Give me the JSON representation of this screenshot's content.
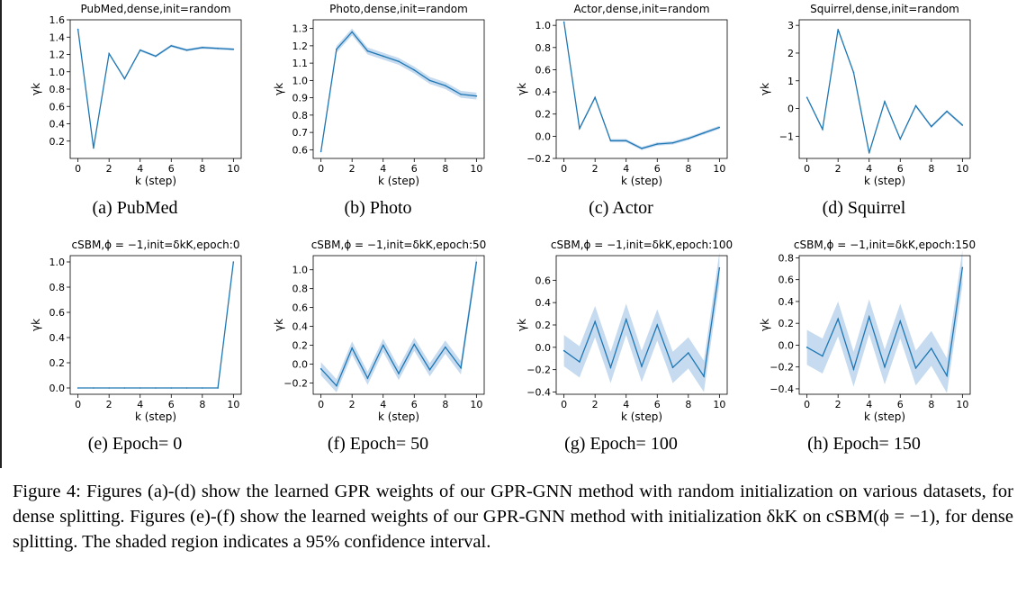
{
  "chart_data": [
    {
      "type": "line",
      "title": "PubMed,dense,init=random",
      "xlabel": "k (step)",
      "ylabel": "γk",
      "ylim": [
        0.0,
        1.6
      ],
      "yticks": [
        0.2,
        0.4,
        0.6,
        0.8,
        1.0,
        1.2,
        1.4,
        1.6
      ],
      "ytick_labels": [
        "0.2",
        "0.4",
        "0.6",
        "0.8",
        "1.0",
        "1.2",
        "1.4",
        "1.6"
      ],
      "xticks": [
        0,
        2,
        4,
        6,
        8,
        10
      ],
      "x": [
        0,
        1,
        2,
        3,
        4,
        5,
        6,
        7,
        8,
        9,
        10
      ],
      "series": [
        {
          "values": [
            1.49,
            0.12,
            1.21,
            0.92,
            1.25,
            1.18,
            1.3,
            1.25,
            1.28,
            1.27,
            1.26
          ],
          "ci": 0.015
        }
      ],
      "caption": "(a)  PubMed"
    },
    {
      "type": "line",
      "title": "Photo,dense,init=random",
      "xlabel": "k (step)",
      "ylabel": "γk",
      "ylim": [
        0.55,
        1.35
      ],
      "yticks": [
        0.6,
        0.7,
        0.8,
        0.9,
        1.0,
        1.1,
        1.2,
        1.3
      ],
      "ytick_labels": [
        "0.6",
        "0.7",
        "0.8",
        "0.9",
        "1.0",
        "1.1",
        "1.2",
        "1.3"
      ],
      "xticks": [
        0,
        2,
        4,
        6,
        8,
        10
      ],
      "x": [
        0,
        1,
        2,
        3,
        4,
        5,
        6,
        7,
        8,
        9,
        10
      ],
      "series": [
        {
          "values": [
            0.59,
            1.18,
            1.28,
            1.17,
            1.14,
            1.11,
            1.06,
            1.0,
            0.97,
            0.92,
            0.91
          ],
          "ci": 0.02
        }
      ],
      "caption": "(b)  Photo"
    },
    {
      "type": "line",
      "title": "Actor,dense,init=random",
      "xlabel": "k (step)",
      "ylabel": "γk",
      "ylim": [
        -0.2,
        1.05
      ],
      "yticks": [
        -0.2,
        0.0,
        0.2,
        0.4,
        0.6,
        0.8,
        1.0
      ],
      "ytick_labels": [
        "−0.2",
        "0.0",
        "0.2",
        "0.4",
        "0.6",
        "0.8",
        "1.0"
      ],
      "xticks": [
        0,
        2,
        4,
        6,
        8,
        10
      ],
      "x": [
        0,
        1,
        2,
        3,
        4,
        5,
        6,
        7,
        8,
        9,
        10
      ],
      "series": [
        {
          "values": [
            1.03,
            0.07,
            0.35,
            -0.04,
            -0.04,
            -0.11,
            -0.07,
            -0.06,
            -0.02,
            0.03,
            0.08
          ],
          "ci": 0.015
        }
      ],
      "caption": "(c)  Actor"
    },
    {
      "type": "line",
      "title": "Squirrel,dense,init=random",
      "xlabel": "k (step)",
      "ylabel": "γk",
      "ylim": [
        -1.8,
        3.2
      ],
      "yticks": [
        -1,
        0,
        1,
        2,
        3
      ],
      "ytick_labels": [
        "−1",
        "0",
        "1",
        "2",
        "3"
      ],
      "xticks": [
        0,
        2,
        4,
        6,
        8,
        10
      ],
      "x": [
        0,
        1,
        2,
        3,
        4,
        5,
        6,
        7,
        8,
        9,
        10
      ],
      "series": [
        {
          "values": [
            0.4,
            -0.75,
            2.85,
            1.3,
            -1.6,
            0.25,
            -1.1,
            0.1,
            -0.65,
            -0.1,
            -0.6
          ],
          "ci": 0.05
        }
      ],
      "caption": "(d)  Squirrel"
    },
    {
      "type": "line",
      "title": "cSBM,ϕ = −1,init=δkK,epoch:0",
      "xlabel": "k (step)",
      "ylabel": "γk",
      "ylim": [
        -0.05,
        1.05
      ],
      "yticks": [
        0.0,
        0.2,
        0.4,
        0.6,
        0.8,
        1.0
      ],
      "ytick_labels": [
        "0.0",
        "0.2",
        "0.4",
        "0.6",
        "0.8",
        "1.0"
      ],
      "xticks": [
        0,
        2,
        4,
        6,
        8,
        10
      ],
      "x": [
        0,
        1,
        2,
        3,
        4,
        5,
        6,
        7,
        8,
        9,
        10
      ],
      "series": [
        {
          "values": [
            0,
            0,
            0,
            0,
            0,
            0,
            0,
            0,
            0,
            0,
            1.0
          ],
          "ci": 0.0
        }
      ],
      "caption": "(e)  Epoch= 0"
    },
    {
      "type": "line",
      "title": "cSBM,ϕ = −1,init=δkK,epoch:50",
      "xlabel": "k (step)",
      "ylabel": "γk",
      "ylim": [
        -0.32,
        1.15
      ],
      "yticks": [
        -0.2,
        0.0,
        0.2,
        0.4,
        0.6,
        0.8,
        1.0
      ],
      "ytick_labels": [
        "−0.2",
        "0.0",
        "0.2",
        "0.4",
        "0.6",
        "0.8",
        "1.0"
      ],
      "xticks": [
        0,
        2,
        4,
        6,
        8,
        10
      ],
      "x": [
        0,
        1,
        2,
        3,
        4,
        5,
        6,
        7,
        8,
        9,
        10
      ],
      "series": [
        {
          "values": [
            -0.05,
            -0.23,
            0.17,
            -0.15,
            0.2,
            -0.1,
            0.21,
            -0.06,
            0.18,
            -0.04,
            1.08
          ],
          "ci": 0.07
        }
      ],
      "caption": "(f)  Epoch= 50"
    },
    {
      "type": "line",
      "title": "cSBM,ϕ = −1,init=δkK,epoch:100",
      "xlabel": "k (step)",
      "ylabel": "γk",
      "ylim": [
        -0.42,
        0.82
      ],
      "yticks": [
        -0.4,
        -0.2,
        0.0,
        0.2,
        0.4,
        0.6
      ],
      "ytick_labels": [
        "−0.4",
        "−0.2",
        "0.0",
        "0.2",
        "0.4",
        "0.6"
      ],
      "xticks": [
        0,
        2,
        4,
        6,
        8,
        10
      ],
      "x": [
        0,
        1,
        2,
        3,
        4,
        5,
        6,
        7,
        8,
        9,
        10
      ],
      "series": [
        {
          "values": [
            -0.03,
            -0.13,
            0.23,
            -0.18,
            0.25,
            -0.17,
            0.2,
            -0.18,
            -0.05,
            -0.26,
            0.71
          ],
          "ci": 0.14
        }
      ],
      "caption": "(g)  Epoch= 100"
    },
    {
      "type": "line",
      "title": "cSBM,ϕ = −1,init=δkK,epoch:150",
      "xlabel": "k (step)",
      "ylabel": "γk",
      "ylim": [
        -0.45,
        0.82
      ],
      "yticks": [
        -0.4,
        -0.2,
        0.0,
        0.2,
        0.4,
        0.6,
        0.8
      ],
      "ytick_labels": [
        "−0.4",
        "−0.2",
        "0.0",
        "0.2",
        "0.4",
        "0.6",
        "0.8"
      ],
      "xticks": [
        0,
        2,
        4,
        6,
        8,
        10
      ],
      "x": [
        0,
        1,
        2,
        3,
        4,
        5,
        6,
        7,
        8,
        9,
        10
      ],
      "series": [
        {
          "values": [
            -0.02,
            -0.1,
            0.24,
            -0.22,
            0.26,
            -0.2,
            0.22,
            -0.21,
            -0.03,
            -0.28,
            0.71
          ],
          "ci": 0.16
        }
      ],
      "caption": "(h)  Epoch= 150"
    }
  ],
  "colors": {
    "line": "#1f77b4",
    "band": "#c6dbef",
    "axis": "#000000"
  },
  "figure_caption": "Figure 4:   Figures (a)-(d) show the learned GPR weights of our GPR-GNN method with random initialization on various datasets, for dense splitting. Figures (e)-(f) show the learned weights of our GPR-GNN method with initialization δkK on cSBM(ϕ = −1), for dense splitting. The shaded region indicates a 95% confidence interval."
}
